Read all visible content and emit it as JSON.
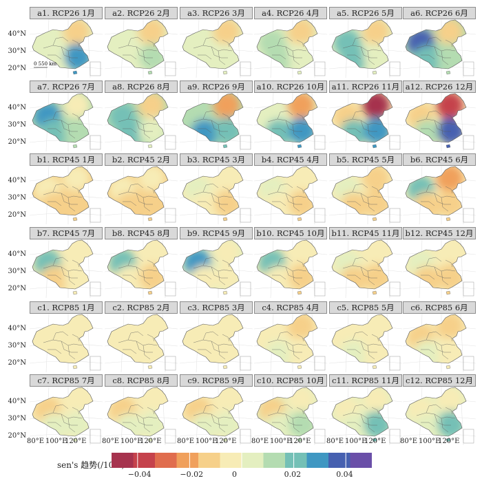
{
  "figure": {
    "rows": [
      [
        "a1. RCP26 1月",
        "a2. RCP26 2月",
        "a3. RCP26 3月",
        "a4. RCP26 4月",
        "a5. RCP26 5月",
        "a6. RCP26 6月"
      ],
      [
        "a7. RCP26 7月",
        "a8. RCP26 8月",
        "a9. RCP26 9月",
        "a10. RCP26 10月",
        "a11. RCP26 11月",
        "a12. RCP26 12月"
      ],
      [
        "b1. RCP45 1月",
        "b2. RCP45 2月",
        "b3. RCP45 3月",
        "b4. RCP45 4月",
        "b5. RCP45 5月",
        "b6. RCP45 6月"
      ],
      [
        "b7. RCP45 7月",
        "b8. RCP45 8月",
        "b9. RCP45 9月",
        "b10. RCP45 10月",
        "b11. RCP45 11月",
        "b12. RCP45 12月"
      ],
      [
        "c1. RCP85 1月",
        "c2. RCP85 2月",
        "c3. RCP85 3月",
        "c4. RCP85 4月",
        "c5. RCP85 5月",
        "c6. RCP85 6月"
      ],
      [
        "c7. RCP85 7月",
        "c8. RCP85 8月",
        "c9. RCP85 9月",
        "c10. RCP85 10月",
        "c11. RCP85 11月",
        "c12. RCP85 12月"
      ]
    ],
    "lat_labels": [
      "40°N",
      "30°N",
      "20°N"
    ],
    "lon_labels": [
      "80°E",
      "100°E",
      "120°E"
    ],
    "scale_bar": "0 550 km"
  },
  "legend": {
    "title": "sen's 趋势(/10 a)",
    "ticks": [
      "−0.04",
      "−0.02",
      "0",
      "0.02",
      "0.04"
    ],
    "colors": [
      "#a6334e",
      "#c5424c",
      "#e06d4e",
      "#f0a05c",
      "#f6d08a",
      "#f7ecb6",
      "#e4efc0",
      "#b4dcb1",
      "#74c0b6",
      "#3f97c2",
      "#4660b0",
      "#6a4fa8"
    ]
  },
  "chart_data": {
    "type": "heatmap",
    "title": "",
    "colorbar_label": "sen's 趋势(/10 a)",
    "colorbar_range": [
      -0.05,
      0.05
    ],
    "colorbar_ticks": [
      -0.04,
      -0.02,
      0,
      0.02,
      0.04
    ],
    "lat_ticks": [
      "40°N",
      "30°N",
      "20°N"
    ],
    "lon_ticks": [
      "80°E",
      "100°E",
      "120°E"
    ],
    "panels_note": "Approximate regional trend values (sen's slope per 10 a) per panel: [northwest, northeast, southwest, southeast]",
    "panels": {
      "a1": [
        0.005,
        -0.015,
        0.004,
        0.025
      ],
      "a2": [
        0.004,
        -0.012,
        0.002,
        0.015
      ],
      "a3": [
        0.008,
        -0.015,
        0.006,
        0.008
      ],
      "a4": [
        0.01,
        -0.012,
        0.012,
        0.005
      ],
      "a5": [
        0.02,
        -0.01,
        0.018,
        0.004
      ],
      "a6": [
        0.035,
        -0.015,
        0.022,
        0.012
      ],
      "a7": [
        0.03,
        -0.005,
        0.02,
        0.012
      ],
      "a8": [
        0.022,
        -0.01,
        0.022,
        0.006
      ],
      "a9": [
        0.015,
        -0.02,
        0.026,
        0.02
      ],
      "a10": [
        0.0,
        -0.025,
        0.02,
        0.025
      ],
      "a11": [
        -0.015,
        -0.045,
        0.02,
        0.03
      ],
      "a12": [
        -0.01,
        -0.04,
        0.01,
        0.035
      ],
      "b1": [
        -0.002,
        -0.008,
        -0.012,
        -0.015
      ],
      "b2": [
        -0.004,
        -0.006,
        -0.01,
        -0.014
      ],
      "b3": [
        0.003,
        -0.006,
        -0.008,
        -0.012
      ],
      "b4": [
        0.006,
        -0.006,
        -0.006,
        -0.01
      ],
      "b5": [
        0.006,
        -0.01,
        -0.012,
        -0.012
      ],
      "b6": [
        0.02,
        -0.02,
        -0.015,
        -0.01
      ],
      "b7": [
        0.022,
        -0.006,
        -0.012,
        -0.008
      ],
      "b8": [
        0.022,
        -0.006,
        -0.008,
        -0.01
      ],
      "b9": [
        0.025,
        -0.006,
        -0.006,
        -0.008
      ],
      "b10": [
        0.02,
        -0.006,
        -0.008,
        -0.012
      ],
      "b11": [
        0.008,
        -0.008,
        -0.01,
        -0.012
      ],
      "b12": [
        0.002,
        -0.008,
        -0.012,
        -0.012
      ],
      "c1": [
        -0.004,
        -0.004,
        -0.002,
        -0.006
      ],
      "c2": [
        -0.004,
        -0.004,
        -0.003,
        -0.006
      ],
      "c3": [
        -0.006,
        -0.004,
        -0.002,
        -0.004
      ],
      "c4": [
        -0.008,
        -0.014,
        0.0,
        -0.002
      ],
      "c5": [
        -0.006,
        -0.006,
        0.002,
        -0.004
      ],
      "c6": [
        -0.016,
        -0.01,
        0.004,
        -0.002
      ],
      "c7": [
        -0.014,
        -0.006,
        0.004,
        0.006
      ],
      "c8": [
        -0.016,
        -0.004,
        0.002,
        0.008
      ],
      "c9": [
        -0.014,
        -0.004,
        0.0,
        0.008
      ],
      "c10": [
        -0.01,
        -0.006,
        0.004,
        0.014
      ],
      "c11": [
        -0.008,
        -0.006,
        0.004,
        0.02
      ],
      "c12": [
        -0.006,
        -0.004,
        0.002,
        0.018
      ]
    }
  }
}
